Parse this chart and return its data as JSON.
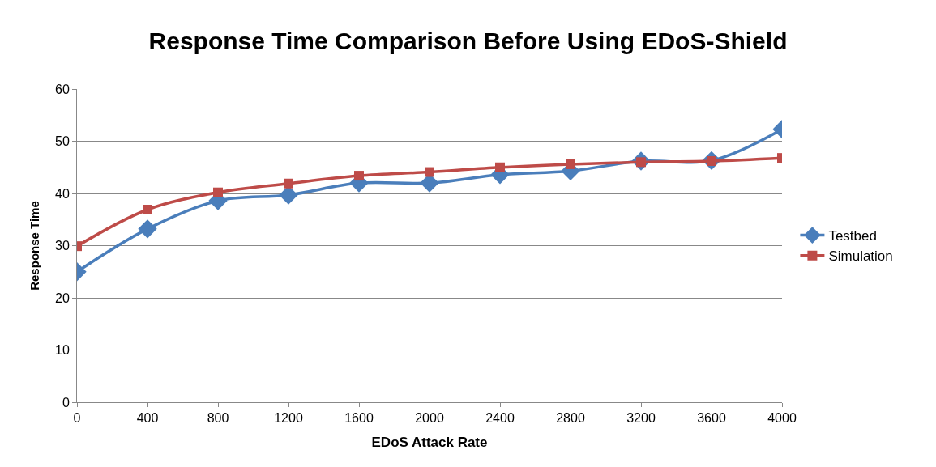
{
  "chart_data": {
    "type": "line",
    "title": "Response Time Comparison Before Using EDoS-Shield",
    "xlabel": "EDoS Attack Rate",
    "ylabel": "Response Time",
    "x": [
      0,
      400,
      800,
      1200,
      1600,
      2000,
      2400,
      2800,
      3200,
      3600,
      4000
    ],
    "series": [
      {
        "name": "Testbed",
        "color": "#4a7ebb",
        "marker": "diamond",
        "values": [
          25,
          33.2,
          38.6,
          39.7,
          42,
          42,
          43.6,
          44.3,
          46.2,
          46.3,
          52.3
        ]
      },
      {
        "name": "Simulation",
        "color": "#be4b48",
        "marker": "square",
        "values": [
          29.9,
          36.9,
          40.2,
          41.9,
          43.4,
          44.1,
          45,
          45.6,
          46,
          46.2,
          46.8
        ]
      }
    ],
    "xlim": [
      0,
      4000
    ],
    "xticks": [
      0,
      400,
      800,
      1200,
      1600,
      2000,
      2400,
      2800,
      3200,
      3600,
      4000
    ],
    "ylim": [
      0,
      60
    ],
    "yticks": [
      0,
      10,
      20,
      30,
      40,
      50,
      60
    ],
    "grid": "y",
    "legend": "right"
  }
}
